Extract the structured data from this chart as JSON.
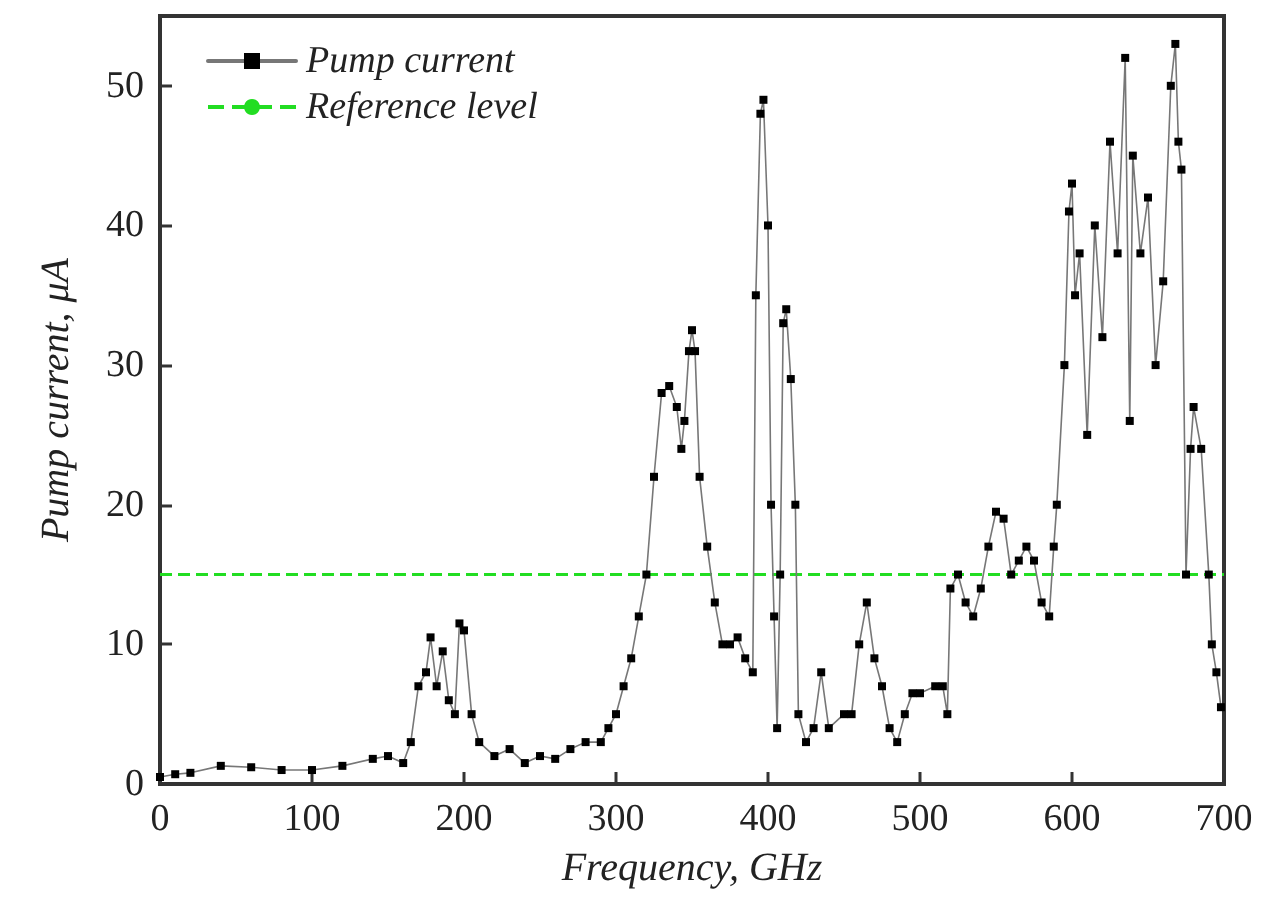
{
  "chart_data": {
    "type": "line",
    "xlabel": "Frequency, GHz",
    "ylabel": "Pump current, μA",
    "xlim": [
      0,
      700
    ],
    "xticks": [
      0,
      100,
      200,
      300,
      400,
      500,
      600,
      700
    ],
    "ylim": [
      0,
      55
    ],
    "yticks": [
      0,
      10,
      20,
      30,
      40,
      50
    ],
    "grid": false,
    "legend": "top left",
    "marker": "square",
    "line_style": "solid",
    "x": [
      0,
      10,
      20,
      40,
      60,
      80,
      100,
      120,
      140,
      150,
      160,
      165,
      170,
      175,
      178,
      182,
      186,
      190,
      194,
      197,
      200,
      205,
      210,
      220,
      230,
      240,
      250,
      260,
      270,
      280,
      290,
      295,
      300,
      305,
      310,
      315,
      320,
      325,
      330,
      335,
      340,
      343,
      345,
      348,
      350,
      352,
      355,
      360,
      365,
      370,
      375,
      380,
      385,
      390,
      392,
      395,
      397,
      400,
      402,
      404,
      406,
      408,
      410,
      412,
      415,
      418,
      420,
      425,
      430,
      435,
      440,
      450,
      455,
      460,
      465,
      470,
      475,
      480,
      485,
      490,
      495,
      500,
      510,
      515,
      518,
      520,
      525,
      530,
      535,
      540,
      545,
      550,
      555,
      560,
      565,
      570,
      575,
      580,
      585,
      588,
      590,
      595,
      598,
      600,
      602,
      605,
      610,
      615,
      620,
      625,
      630,
      635,
      638,
      640,
      645,
      650,
      655,
      660,
      665,
      668,
      670,
      672,
      675,
      678,
      680,
      685,
      690,
      692,
      695,
      698
    ],
    "series": [
      {
        "name": "Pump current",
        "color": "#000000",
        "values": [
          0.5,
          0.7,
          0.8,
          1.3,
          1.2,
          1.0,
          1.0,
          1.3,
          1.8,
          2.0,
          1.5,
          3,
          7,
          8,
          10.5,
          7,
          9.5,
          6,
          5,
          11.5,
          11,
          5,
          3,
          2,
          2.5,
          1.5,
          2,
          1.8,
          2.5,
          3,
          3,
          4,
          5,
          7,
          9,
          12,
          15,
          22,
          28,
          28.5,
          27,
          24,
          26,
          31,
          32.5,
          31,
          22,
          17,
          13,
          10,
          10,
          10.5,
          9,
          8,
          35,
          48,
          49,
          40,
          20,
          12,
          4,
          15,
          33,
          34,
          29,
          20,
          5,
          3,
          4,
          8,
          4,
          5,
          5,
          10,
          13,
          9,
          7,
          4,
          3,
          5,
          6.5,
          6.5,
          7,
          7,
          5,
          14,
          15,
          13,
          12,
          14,
          17,
          19.5,
          19,
          15,
          16,
          17,
          16,
          13,
          12,
          17,
          20,
          30,
          41,
          43,
          35,
          38,
          25,
          40,
          32,
          46,
          38,
          52,
          26,
          45,
          38,
          42,
          30,
          36,
          50,
          53,
          46,
          44,
          15,
          24,
          27,
          24,
          15,
          10,
          8,
          5.5
        ]
      }
    ],
    "ref_lines": [
      {
        "axis": "y",
        "value": 15,
        "label": "Reference level",
        "color": "#22dd22",
        "line_style": "dashed"
      }
    ]
  }
}
